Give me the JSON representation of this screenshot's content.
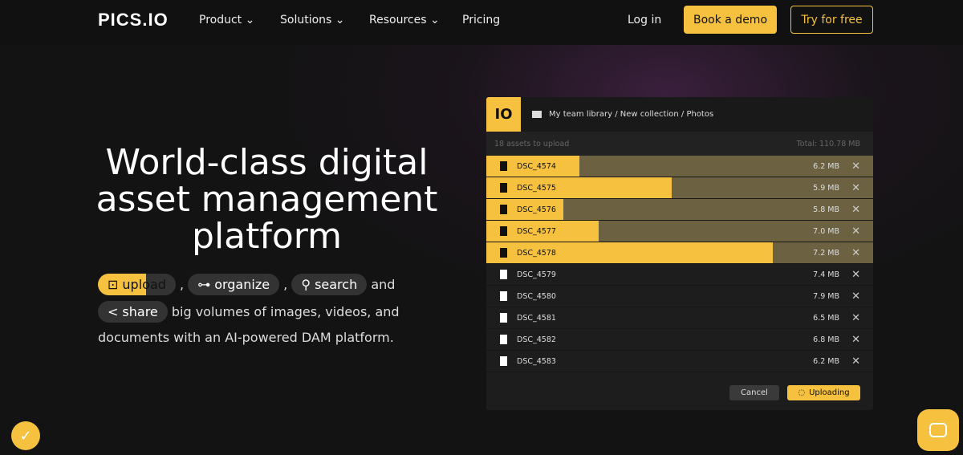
{
  "nav": {
    "logo": "PICS.IO",
    "items": [
      {
        "label": "Product"
      },
      {
        "label": "Solutions"
      },
      {
        "label": "Resources"
      },
      {
        "label": "Pricing"
      }
    ],
    "login": "Log in",
    "demo": "Book a demo",
    "try": "Try for free"
  },
  "hero": {
    "title": "World-class digital asset management platform",
    "chips": {
      "upload": "upload",
      "organize": "organize",
      "search": "search",
      "share": "share"
    },
    "sep": ",",
    "and": "and",
    "line2": "big volumes of images, videos, and",
    "line3": "documents with an AI-powered DAM platform."
  },
  "panel": {
    "logo": "IO",
    "breadcrumb": "My team library / New collection / Photos",
    "count": "18 assets to upload",
    "total": "Total: 110.78 MB",
    "files": [
      {
        "name": "DSC_4574",
        "size": "6.2 MB",
        "progress": 24
      },
      {
        "name": "DSC_4575",
        "size": "5.9 MB",
        "progress": 48
      },
      {
        "name": "DSC_4576",
        "size": "5.8 MB",
        "progress": 20
      },
      {
        "name": "DSC_4577",
        "size": "7.0 MB",
        "progress": 29
      },
      {
        "name": "DSC_4578",
        "size": "7.2 MB",
        "progress": 74
      },
      {
        "name": "DSC_4579",
        "size": "7.4 MB"
      },
      {
        "name": "DSC_4580",
        "size": "7.9 MB"
      },
      {
        "name": "DSC_4581",
        "size": "6.5 MB"
      },
      {
        "name": "DSC_4582",
        "size": "6.8 MB"
      },
      {
        "name": "DSC_4583",
        "size": "6.2 MB"
      }
    ],
    "cancel": "Cancel",
    "uploading": "Uploading"
  },
  "colors": {
    "accent": "#f5c13e",
    "background": "#141414"
  }
}
